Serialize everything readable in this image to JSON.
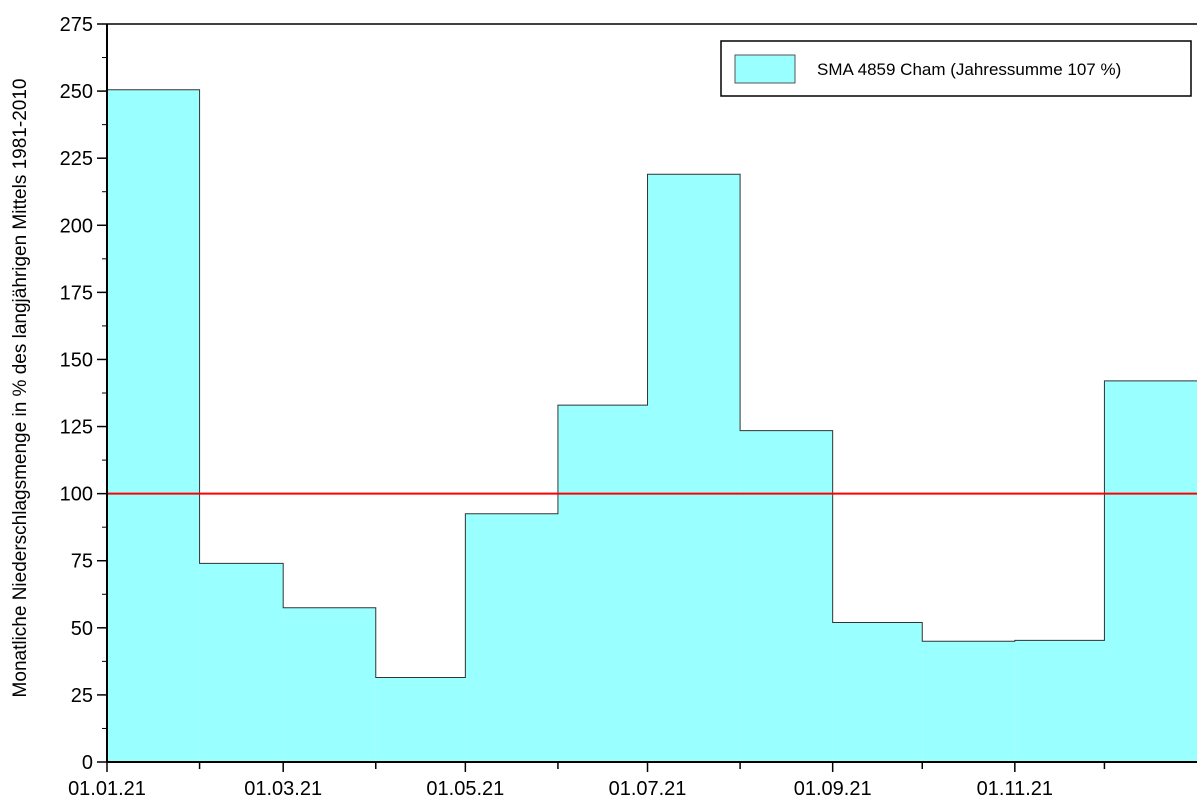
{
  "chart_data": {
    "type": "area",
    "title": "",
    "xlabel": "",
    "ylabel": "Monatliche Niederschlagsmenge in % des langjährigen Mittels 1981-2010",
    "ylim": [
      0,
      275
    ],
    "xlim": [
      "01.01.21",
      "31.12.21"
    ],
    "yticks": [
      0,
      25,
      50,
      75,
      100,
      125,
      150,
      175,
      200,
      225,
      250,
      275
    ],
    "xtick_labels": [
      "01.01.21",
      "01.03.21",
      "01.05.21",
      "01.07.21",
      "01.09.21",
      "01.11.21"
    ],
    "grid": false,
    "legend": "top-right",
    "reference_line": {
      "value": 100,
      "color": "#ff0000"
    },
    "series": [
      {
        "name": "SMA 4859 Cham (Jahressumme 107 %)",
        "color": "#99ffff",
        "categories": [
          "Jan",
          "Feb",
          "Mar",
          "Apr",
          "May",
          "Jun",
          "Jul",
          "Aug",
          "Sep",
          "Oct",
          "Nov",
          "Dec"
        ],
        "values": [
          250.5,
          74,
          57.5,
          31.5,
          92.5,
          133,
          219,
          123.5,
          52,
          45,
          45.3,
          142
        ]
      }
    ]
  }
}
